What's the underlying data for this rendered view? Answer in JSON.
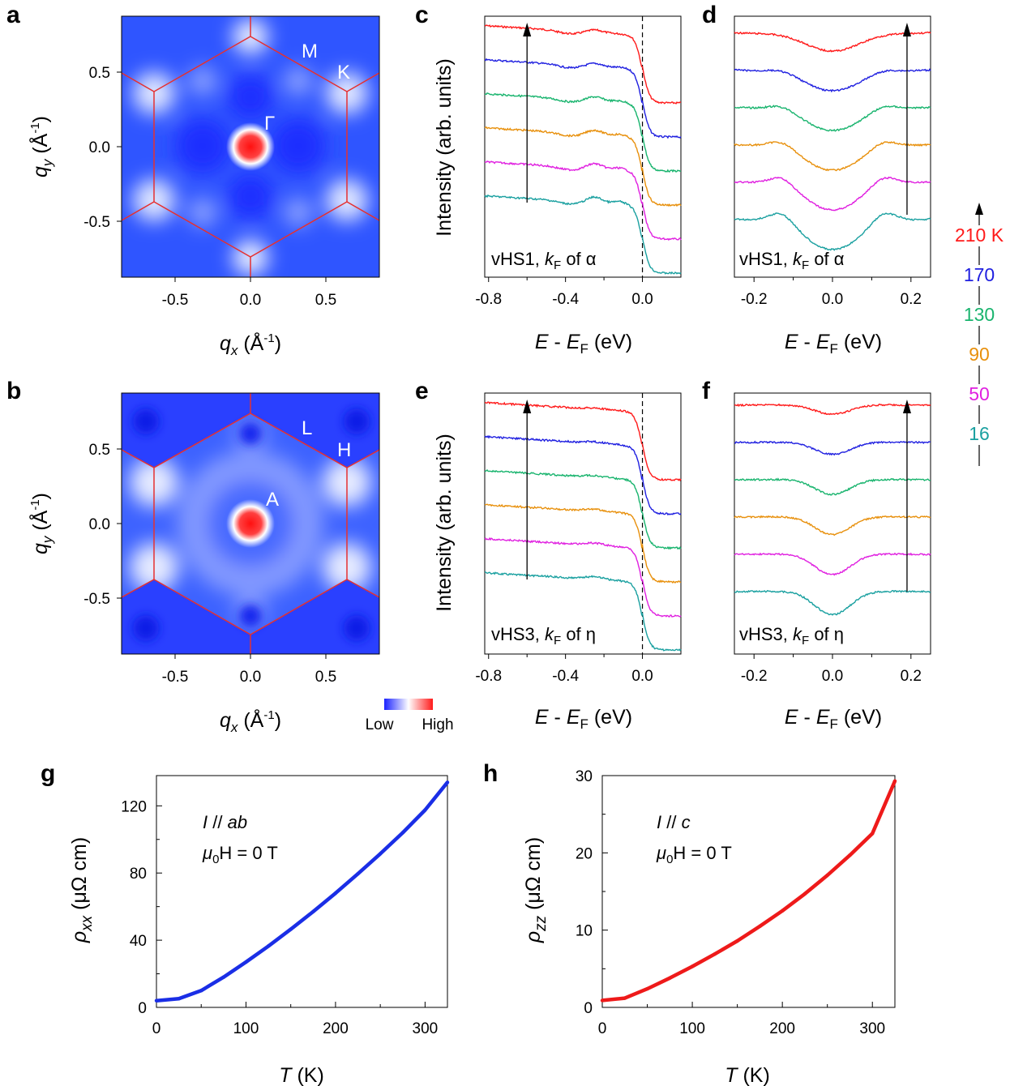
{
  "panels": {
    "a": {
      "letter": "a",
      "sym1": "M",
      "sym2": "K",
      "sym3": "Γ"
    },
    "b": {
      "letter": "b",
      "sym1": "L",
      "sym2": "H",
      "sym3": "A"
    },
    "c": {
      "letter": "c",
      "note": "vHS1, ",
      "note_k": "k",
      "note_sub": "F",
      "note_end": " of α"
    },
    "d": {
      "letter": "d",
      "note": "vHS1, ",
      "note_k": "k",
      "note_sub": "F",
      "note_end": " of α"
    },
    "e": {
      "letter": "e",
      "note": "vHS3, ",
      "note_k": "k",
      "note_sub": "F",
      "note_end": " of η"
    },
    "f": {
      "letter": "f",
      "note": "vHS3, ",
      "note_k": "k",
      "note_sub": "F",
      "note_end": " of η"
    },
    "g": {
      "letter": "g",
      "line1": "I // ab",
      "line2_pre": "μ",
      "line2_sub": "0",
      "line2_post": "H = 0 T"
    },
    "h": {
      "letter": "h",
      "line1": "I // c",
      "line2_pre": "μ",
      "line2_sub": "0",
      "line2_post": "H = 0 T"
    }
  },
  "axes": {
    "qx_label": "q",
    "qx_sub": "x",
    "qx_unit": " (Å",
    "qx_sup": "-1",
    "qx_close": ")",
    "qy_label": "q",
    "qy_sub": "y",
    "qy_unit": " (Å",
    "qy_sup": "-1",
    "qy_close": ")",
    "e_label": "E - E",
    "e_sub": "F",
    "e_unit": " (eV)",
    "intensity": "Intensity (arb. units)",
    "t_label": "T",
    "t_unit": " (K)",
    "rhoxx": "ρ",
    "rhoxx_sub": "xx",
    "rhoxx_unit": " (μΩ cm)",
    "rhozz": "ρ",
    "rhozz_sub": "zz",
    "rhozz_unit": " (μΩ cm)"
  },
  "colorbar": {
    "low": "Low",
    "high": "High",
    "low_color": "#1a22ff",
    "high_color": "#ff1a1a"
  },
  "temperature_legend": [
    {
      "label": "210 K",
      "color": "#ff1a1a"
    },
    {
      "label": "170",
      "color": "#2020e0"
    },
    {
      "label": "130",
      "color": "#19b46e"
    },
    {
      "label": "90",
      "color": "#e8900c"
    },
    {
      "label": "50",
      "color": "#e020e0"
    },
    {
      "label": "16",
      "color": "#1aa0a0"
    }
  ],
  "chart_data": [
    {
      "type": "heatmap",
      "panel": "a",
      "title": "",
      "xlabel": "q_x (Å^-1)",
      "ylabel": "q_y (Å^-1)",
      "xlim": [
        -0.85,
        0.85
      ],
      "ylim": [
        -0.85,
        0.85
      ],
      "xticks": [
        "-0.5",
        "0.0",
        "0.5"
      ],
      "yticks": [
        "0.5",
        "0.0",
        "-0.5"
      ],
      "hexagon_corners": [
        [
          0,
          0.73
        ],
        [
          0.63,
          0.365
        ],
        [
          0.63,
          -0.365
        ],
        [
          0,
          -0.73
        ],
        [
          -0.63,
          -0.365
        ],
        [
          -0.63,
          0.365
        ]
      ],
      "center_intensity": "high",
      "labels": [
        "M",
        "K",
        "Γ"
      ]
    },
    {
      "type": "heatmap",
      "panel": "b",
      "title": "",
      "xlabel": "q_x (Å^-1)",
      "ylabel": "q_y (Å^-1)",
      "xlim": [
        -0.85,
        0.85
      ],
      "ylim": [
        -0.85,
        0.85
      ],
      "xticks": [
        "-0.5",
        "0.0",
        "0.5"
      ],
      "yticks": [
        "0.5",
        "0.0",
        "-0.5"
      ],
      "hexagon_corners": [
        [
          0,
          0.73
        ],
        [
          0.63,
          0.365
        ],
        [
          0.63,
          -0.365
        ],
        [
          0,
          -0.73
        ],
        [
          -0.63,
          -0.365
        ],
        [
          -0.63,
          0.365
        ]
      ],
      "center_intensity": "high",
      "labels": [
        "L",
        "H",
        "A"
      ]
    },
    {
      "type": "line",
      "panel": "c",
      "xlabel": "E - E_F (eV)",
      "ylabel": "Intensity (arb. units)",
      "xlim": [
        -0.82,
        0.2
      ],
      "xticks": [
        "-0.8",
        "-0.4",
        "0.0"
      ],
      "fermi_line": 0.0,
      "series": [
        "210 K",
        "170",
        "130",
        "90",
        "50",
        "16"
      ],
      "features": [
        -0.25,
        -0.12
      ],
      "step_at": 0.0
    },
    {
      "type": "line",
      "panel": "d",
      "xlabel": "E - E_F (eV)",
      "ylabel": "",
      "xlim": [
        -0.25,
        0.25
      ],
      "xticks": [
        "-0.2",
        "0.0",
        "0.2"
      ],
      "series": [
        "210 K",
        "170",
        "130",
        "90",
        "50",
        "16"
      ],
      "dip_at": 0.0
    },
    {
      "type": "line",
      "panel": "e",
      "xlabel": "E - E_F (eV)",
      "ylabel": "Intensity (arb. units)",
      "xlim": [
        -0.82,
        0.2
      ],
      "xticks": [
        "-0.8",
        "-0.4",
        "0.0"
      ],
      "fermi_line": 0.0,
      "series": [
        "210 K",
        "170",
        "130",
        "90",
        "50",
        "16"
      ],
      "features": [
        -0.25
      ],
      "step_at": 0.0
    },
    {
      "type": "line",
      "panel": "f",
      "xlabel": "E - E_F (eV)",
      "ylabel": "",
      "xlim": [
        -0.25,
        0.25
      ],
      "xticks": [
        "-0.2",
        "0.0",
        "0.2"
      ],
      "series": [
        "210 K",
        "170",
        "130",
        "90",
        "50",
        "16"
      ],
      "dip_at": 0.0
    },
    {
      "type": "line",
      "panel": "g",
      "xlabel": "T (K)",
      "ylabel": "ρ_xx (μΩ cm)",
      "xlim": [
        0,
        325
      ],
      "ylim": [
        0,
        138
      ],
      "xticks": [
        "0",
        "100",
        "200",
        "300"
      ],
      "yticks": [
        "0",
        "40",
        "80",
        "120"
      ],
      "x": [
        0,
        25,
        50,
        75,
        100,
        125,
        150,
        175,
        200,
        225,
        250,
        275,
        300,
        325
      ],
      "y": [
        4.0,
        5.2,
        10.0,
        18.0,
        27.0,
        36.5,
        46.5,
        57.0,
        68.0,
        79.5,
        91.5,
        104.0,
        117.5,
        134.0
      ]
    },
    {
      "type": "line",
      "panel": "h",
      "xlabel": "T (K)",
      "ylabel": "ρ_zz (μΩ cm)",
      "xlim": [
        0,
        325
      ],
      "ylim": [
        0,
        30
      ],
      "xticks": [
        "0",
        "100",
        "200",
        "300"
      ],
      "yticks": [
        "0",
        "10",
        "20",
        "30"
      ],
      "x": [
        0,
        25,
        50,
        75,
        100,
        125,
        150,
        175,
        200,
        225,
        250,
        275,
        300,
        325
      ],
      "y": [
        0.9,
        1.2,
        2.4,
        3.8,
        5.3,
        6.9,
        8.6,
        10.5,
        12.5,
        14.7,
        17.1,
        19.7,
        22.5,
        29.3
      ]
    }
  ]
}
